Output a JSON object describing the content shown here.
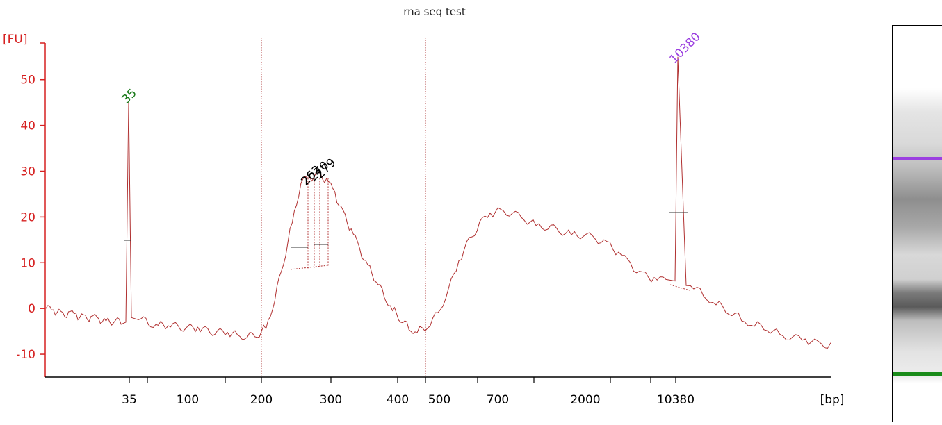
{
  "chart_data": {
    "type": "line",
    "title": "rna seq test",
    "ylabel": "[FU]",
    "xlabel": "[bp]",
    "ylim": [
      -15,
      58
    ],
    "y_ticks": [
      -10,
      0,
      10,
      20,
      30,
      40,
      50
    ],
    "x_tick_labels": [
      "35",
      "100",
      "200",
      "300",
      "400",
      "500",
      "700",
      "2000",
      "10380"
    ],
    "peaks": [
      {
        "label": "35",
        "value": 45,
        "color": "#1a7a1a"
      },
      {
        "label": "262",
        "value": 28,
        "color": "#000000"
      },
      {
        "label": "270",
        "value": 29,
        "color": "#000000"
      },
      {
        "label": "279",
        "value": 30,
        "color": "#000000"
      },
      {
        "label": "10380",
        "value": 55,
        "color": "#9b3fe0"
      }
    ],
    "series": [
      {
        "values": [
          0,
          -0.5,
          -1,
          -1.2,
          -1.5,
          -1.8,
          -2,
          -2.3,
          -2.6,
          -2.8,
          -3,
          45,
          -2,
          -3.2,
          -3.5,
          -3.8,
          -4,
          -4.2,
          -4.6,
          -4.9,
          -5.2,
          -5.5,
          -5.8,
          -6.1,
          -6,
          -4,
          2,
          10,
          19,
          27.5,
          28.5,
          29.5,
          28,
          25,
          21,
          17,
          13,
          9.5,
          6,
          2.8,
          0,
          -2.5,
          -4.2,
          -5,
          -4.2,
          -1,
          4,
          10,
          15,
          18.5,
          20.5,
          21.5,
          20.8,
          19.5,
          18.5,
          17.8,
          17,
          16.5,
          16,
          15.3,
          14.5,
          12,
          9.5,
          7.5,
          6.3,
          6,
          55,
          5,
          3,
          1.2,
          -0.8,
          -2.2,
          -3.5,
          -4.6,
          -5.6,
          -6.4,
          -7,
          -7.6,
          -8
        ]
      }
    ],
    "gel_lane": {
      "marker_upper_color": "#9b3fe0",
      "marker_lower_color": "#1a8c1a"
    }
  }
}
